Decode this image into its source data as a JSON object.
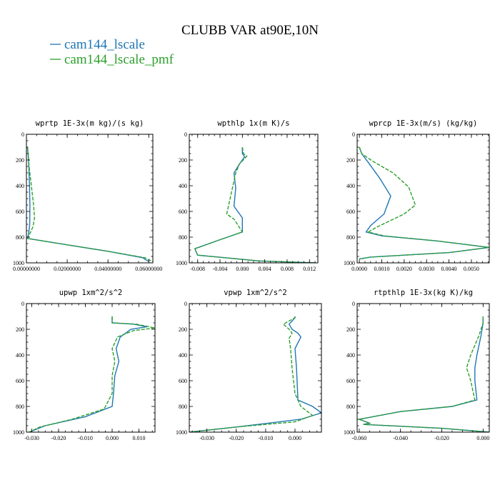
{
  "figure": {
    "title": "CLUBB VAR at90E,10N",
    "legend": [
      {
        "label": "cam144_lscale",
        "color": "#1f77b4",
        "dash": "solid"
      },
      {
        "label": "cam144_lscale_pmf",
        "color": "#2ca02c",
        "dash": "dashed"
      }
    ]
  },
  "chart_data": [
    {
      "type": "line",
      "title": "wprtp  1E-3x(m kg)/(s kg)",
      "xlim": [
        0,
        0.062
      ],
      "ylim": [
        1000,
        0
      ],
      "y_inverted": true,
      "x_ticks": [
        0,
        0.02,
        0.04,
        0.06
      ],
      "x_tick_labels": [
        "0.00000000",
        "0.02000000",
        "0.04000000",
        "0.06000000"
      ],
      "y_ticks": [
        0,
        200,
        400,
        600,
        800,
        1000
      ],
      "y_tick_labels": [
        "0",
        "200",
        "400",
        "600",
        "800",
        "1000"
      ],
      "series": [
        {
          "name": "cam144_lscale",
          "x": [
            0.0005,
            0.0008,
            0.0012,
            0.0015,
            0.0017,
            0.0016,
            0.0012,
            0.0008,
            0.0005,
            0.02,
            0.04,
            0.057,
            0.06
          ],
          "y": [
            100,
            150,
            250,
            400,
            550,
            700,
            760,
            790,
            810,
            860,
            910,
            960,
            990
          ]
        },
        {
          "name": "cam144_lscale_pmf",
          "x": [
            0.0005,
            0.0009,
            0.0013,
            0.0024,
            0.0035,
            0.004,
            0.0032,
            0.0015,
            0.0006,
            0.02,
            0.04,
            0.058,
            0.062
          ],
          "y": [
            100,
            150,
            250,
            400,
            550,
            650,
            720,
            780,
            810,
            860,
            910,
            960,
            990
          ]
        }
      ]
    },
    {
      "type": "line",
      "title": "wpthlp  1x(m K)/s",
      "xlim": [
        -0.0095,
        0.0135
      ],
      "ylim": [
        1000,
        0
      ],
      "y_inverted": true,
      "x_ticks": [
        -0.008,
        -0.004,
        0,
        0.004,
        0.008,
        0.012
      ],
      "x_tick_labels": [
        "-0.008",
        "-0.004",
        "0.000",
        "0.004",
        "0.008",
        "0.012"
      ],
      "y_ticks": [
        0,
        200,
        400,
        600,
        800,
        1000
      ],
      "y_tick_labels": [
        "0",
        "200",
        "400",
        "600",
        "800",
        "1000"
      ],
      "series": [
        {
          "name": "cam144_lscale",
          "x": [
            0,
            0,
            0.0004,
            -0.0005,
            -0.0015,
            -0.0012,
            -0.0015,
            0,
            0,
            -0.004,
            -0.0085,
            -0.008,
            0.003,
            0.013
          ],
          "y": [
            100,
            150,
            175,
            230,
            300,
            420,
            560,
            650,
            760,
            820,
            890,
            940,
            985,
            1000
          ]
        },
        {
          "name": "cam144_lscale_pmf",
          "x": [
            0,
            0.0002,
            0.0008,
            -0.0005,
            -0.0012,
            -0.0018,
            -0.0028,
            -0.0015,
            0,
            -0.004,
            -0.0085,
            -0.008,
            0.003,
            0.013
          ],
          "y": [
            100,
            150,
            170,
            230,
            300,
            420,
            620,
            660,
            760,
            820,
            890,
            940,
            985,
            1000
          ]
        }
      ]
    },
    {
      "type": "line",
      "title": "wprcp  1E-3x(m/s) (kg/kg)",
      "xlim": [
        -0.0001,
        0.0058
      ],
      "ylim": [
        1000,
        0
      ],
      "y_inverted": true,
      "x_ticks": [
        0,
        0.001,
        0.002,
        0.003,
        0.004,
        0.005
      ],
      "x_tick_labels": [
        "0.0000",
        "0.0010",
        "0.0020",
        "0.0030",
        "0.0040",
        "0.0050"
      ],
      "y_ticks": [
        0,
        200,
        400,
        600,
        800,
        1000
      ],
      "y_tick_labels": [
        "0",
        "200",
        "400",
        "600",
        "800",
        "1000"
      ],
      "series": [
        {
          "name": "cam144_lscale",
          "x": [
            0,
            0.0001,
            0.0004,
            0.0009,
            0.0014,
            0.0011,
            0.0005,
            0.0003,
            0.001,
            0.0035,
            0.0058,
            0.004,
            0.0005,
            0
          ],
          "y": [
            100,
            150,
            220,
            340,
            480,
            620,
            710,
            760,
            790,
            830,
            880,
            920,
            955,
            970
          ]
        },
        {
          "name": "cam144_lscale_pmf",
          "x": [
            0,
            0.0001,
            0.0006,
            0.0015,
            0.0022,
            0.0025,
            0.002,
            0.0008,
            0.0004,
            0.0011,
            0.0035,
            0.0058,
            0.004,
            0.0005,
            0
          ],
          "y": [
            100,
            150,
            210,
            300,
            410,
            550,
            620,
            720,
            760,
            790,
            830,
            880,
            920,
            955,
            970
          ]
        }
      ]
    },
    {
      "type": "line",
      "title": "upwp  1xm^2/s^2",
      "xlim": [
        -0.032,
        0.016
      ],
      "ylim": [
        1000,
        0
      ],
      "y_inverted": true,
      "x_ticks": [
        -0.03,
        -0.02,
        -0.01,
        0,
        0.01
      ],
      "x_tick_labels": [
        "-0.030",
        "-0.020",
        "-0.010",
        "0.000",
        "0.010"
      ],
      "y_ticks": [
        0,
        200,
        400,
        600,
        800,
        1000
      ],
      "y_tick_labels": [
        "0",
        "200",
        "400",
        "600",
        "800",
        "1000"
      ],
      "series": [
        {
          "name": "cam144_lscale",
          "x": [
            0,
            0,
            0.008,
            0.013,
            0.007,
            0.003,
            0.0015,
            0.0025,
            0.001,
            0.0005,
            0,
            -0.01,
            -0.025,
            -0.031
          ],
          "y": [
            100,
            150,
            160,
            180,
            200,
            260,
            350,
            450,
            560,
            700,
            800,
            880,
            950,
            1000
          ]
        },
        {
          "name": "cam144_lscale_pmf",
          "x": [
            0,
            0,
            0.009,
            0.016,
            0.008,
            0.002,
            0,
            0.001,
            0,
            0,
            -0.003,
            -0.015,
            -0.027,
            -0.031
          ],
          "y": [
            100,
            150,
            160,
            190,
            210,
            260,
            350,
            450,
            560,
            700,
            820,
            900,
            960,
            1000
          ]
        }
      ]
    },
    {
      "type": "line",
      "title": "vpwp  1xm^2/s^2",
      "xlim": [
        -0.036,
        0.009
      ],
      "ylim": [
        1000,
        0
      ],
      "y_inverted": true,
      "x_ticks": [
        -0.03,
        -0.02,
        -0.01,
        0
      ],
      "x_tick_labels": [
        "-0.030",
        "-0.020",
        "-0.010",
        "0.000"
      ],
      "y_ticks": [
        0,
        200,
        400,
        600,
        800,
        1000
      ],
      "y_tick_labels": [
        "0",
        "200",
        "400",
        "600",
        "800",
        "1000"
      ],
      "series": [
        {
          "name": "cam144_lscale",
          "x": [
            0,
            0,
            -0.002,
            -0.001,
            0.001,
            0.002,
            0,
            0.0005,
            0.001,
            0.006,
            0.009,
            0.002,
            -0.02,
            -0.036
          ],
          "y": [
            100,
            110,
            160,
            200,
            230,
            260,
            350,
            500,
            750,
            800,
            850,
            900,
            960,
            1000
          ]
        },
        {
          "name": "cam144_lscale_pmf",
          "x": [
            0,
            0,
            -0.004,
            -0.002,
            -0.001,
            -0.002,
            -0.0015,
            -0.001,
            0,
            0.002,
            0.006,
            0,
            -0.02,
            -0.036
          ],
          "y": [
            100,
            110,
            160,
            200,
            230,
            270,
            350,
            500,
            700,
            800,
            870,
            920,
            960,
            1000
          ]
        }
      ]
    },
    {
      "type": "line",
      "title": "rtpthlp  1E-3x(kg K)/kg",
      "xlim": [
        -0.061,
        0.003
      ],
      "ylim": [
        1000,
        0
      ],
      "y_inverted": true,
      "x_ticks": [
        -0.06,
        -0.04,
        -0.02,
        0
      ],
      "x_tick_labels": [
        "-0.060",
        "-0.040",
        "-0.020",
        "0.000"
      ],
      "y_ticks": [
        0,
        200,
        400,
        600,
        800,
        1000
      ],
      "y_tick_labels": [
        "0",
        "200",
        "400",
        "600",
        "800",
        "1000"
      ],
      "series": [
        {
          "name": "cam144_lscale",
          "x": [
            0,
            0,
            -0.001,
            -0.003,
            -0.004,
            -0.004,
            -0.003,
            -0.015,
            -0.04,
            -0.06,
            -0.055,
            -0.058,
            -0.02,
            0.003
          ],
          "y": [
            100,
            150,
            250,
            400,
            500,
            600,
            750,
            800,
            840,
            900,
            930,
            940,
            970,
            1000
          ]
        },
        {
          "name": "cam144_lscale_pmf",
          "x": [
            0,
            0,
            -0.002,
            -0.006,
            -0.008,
            -0.006,
            -0.004,
            -0.015,
            -0.04,
            -0.06,
            -0.055,
            -0.058,
            -0.02,
            0.003
          ],
          "y": [
            100,
            150,
            250,
            400,
            500,
            600,
            750,
            800,
            840,
            900,
            930,
            940,
            970,
            1000
          ]
        }
      ]
    }
  ]
}
